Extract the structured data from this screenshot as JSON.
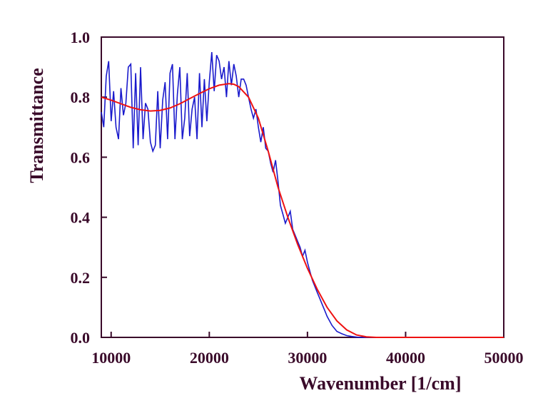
{
  "chart_data": {
    "type": "line",
    "title": "",
    "xlabel": "Wavenumber [1/cm]",
    "ylabel": "Transmittance",
    "xlim": [
      9000,
      50000
    ],
    "ylim": [
      0.0,
      1.0
    ],
    "x_ticks": [
      "10000",
      "20000",
      "30000",
      "40000",
      "50000"
    ],
    "y_ticks": [
      "0.0",
      "0.2",
      "0.4",
      "0.6",
      "0.8",
      "1.0"
    ],
    "grid": false,
    "legend": "none",
    "colors": {
      "measured": "#1a1acc",
      "fit": "#ee1111",
      "axes": "#3a0a2a"
    },
    "series": [
      {
        "x": [
          9000,
          9250,
          9500,
          9750,
          10000,
          10250,
          10500,
          10750,
          11000,
          11250,
          11500,
          11750,
          12000,
          12250,
          12500,
          12750,
          13000,
          13250,
          13500,
          13750,
          14000,
          14250,
          14500,
          14750,
          15000,
          15250,
          15500,
          15750,
          16000,
          16250,
          16500,
          16750,
          17000,
          17250,
          17500,
          17750,
          18000,
          18250,
          18500,
          18750,
          19000,
          19250,
          19500,
          19750,
          20000,
          20250,
          20500,
          20750,
          21000,
          21250,
          21500,
          21750,
          22000,
          22250,
          22500,
          22750,
          23000,
          23250,
          23500,
          23750,
          24000,
          24250,
          24500,
          24750,
          25000,
          25250,
          25500,
          25750,
          26000,
          26250,
          26500,
          26750,
          27000,
          27250,
          27500,
          27750,
          28000,
          28250,
          28500,
          28750,
          29000,
          29250,
          29500,
          29750,
          30000,
          30250,
          30500,
          30750,
          31000,
          31250,
          31500,
          31750,
          32000,
          32250,
          32500,
          32750,
          33000,
          33500,
          34000,
          34500,
          35000,
          35500,
          36000,
          36500,
          37000,
          37500
        ],
        "y": [
          0.75,
          0.7,
          0.87,
          0.92,
          0.72,
          0.82,
          0.7,
          0.66,
          0.83,
          0.74,
          0.78,
          0.9,
          0.91,
          0.63,
          0.88,
          0.64,
          0.9,
          0.66,
          0.78,
          0.76,
          0.65,
          0.62,
          0.64,
          0.82,
          0.63,
          0.79,
          0.85,
          0.66,
          0.88,
          0.91,
          0.66,
          0.81,
          0.9,
          0.66,
          0.73,
          0.88,
          0.67,
          0.76,
          0.8,
          0.66,
          0.88,
          0.7,
          0.86,
          0.72,
          0.85,
          0.95,
          0.82,
          0.94,
          0.92,
          0.86,
          0.9,
          0.8,
          0.92,
          0.84,
          0.91,
          0.87,
          0.8,
          0.86,
          0.86,
          0.84,
          0.8,
          0.76,
          0.73,
          0.76,
          0.7,
          0.65,
          0.7,
          0.63,
          0.62,
          0.58,
          0.55,
          0.59,
          0.52,
          0.44,
          0.41,
          0.38,
          0.4,
          0.42,
          0.36,
          0.34,
          0.32,
          0.3,
          0.27,
          0.29,
          0.25,
          0.22,
          0.19,
          0.17,
          0.15,
          0.13,
          0.11,
          0.09,
          0.07,
          0.055,
          0.04,
          0.03,
          0.02,
          0.012,
          0.006,
          0.003,
          0.001,
          0.0,
          0.0,
          0.0,
          0.0,
          0.0
        ]
      },
      {
        "x": [
          9000,
          10000,
          11000,
          12000,
          13000,
          14000,
          15000,
          16000,
          17000,
          18000,
          19000,
          20000,
          21000,
          22000,
          22500,
          23000,
          24000,
          25000,
          26000,
          27000,
          28000,
          29000,
          30000,
          31000,
          32000,
          33000,
          34000,
          35000,
          36000,
          37000,
          38000,
          40000,
          42000,
          44000,
          46000,
          48000,
          50000
        ],
        "y": [
          0.8,
          0.79,
          0.778,
          0.766,
          0.758,
          0.754,
          0.756,
          0.764,
          0.778,
          0.795,
          0.812,
          0.828,
          0.84,
          0.845,
          0.843,
          0.835,
          0.8,
          0.73,
          0.62,
          0.5,
          0.4,
          0.31,
          0.23,
          0.16,
          0.1,
          0.055,
          0.025,
          0.008,
          0.002,
          0.0,
          0.0,
          0.0,
          0.0,
          0.0,
          0.0,
          0.0,
          0.0
        ]
      }
    ]
  }
}
